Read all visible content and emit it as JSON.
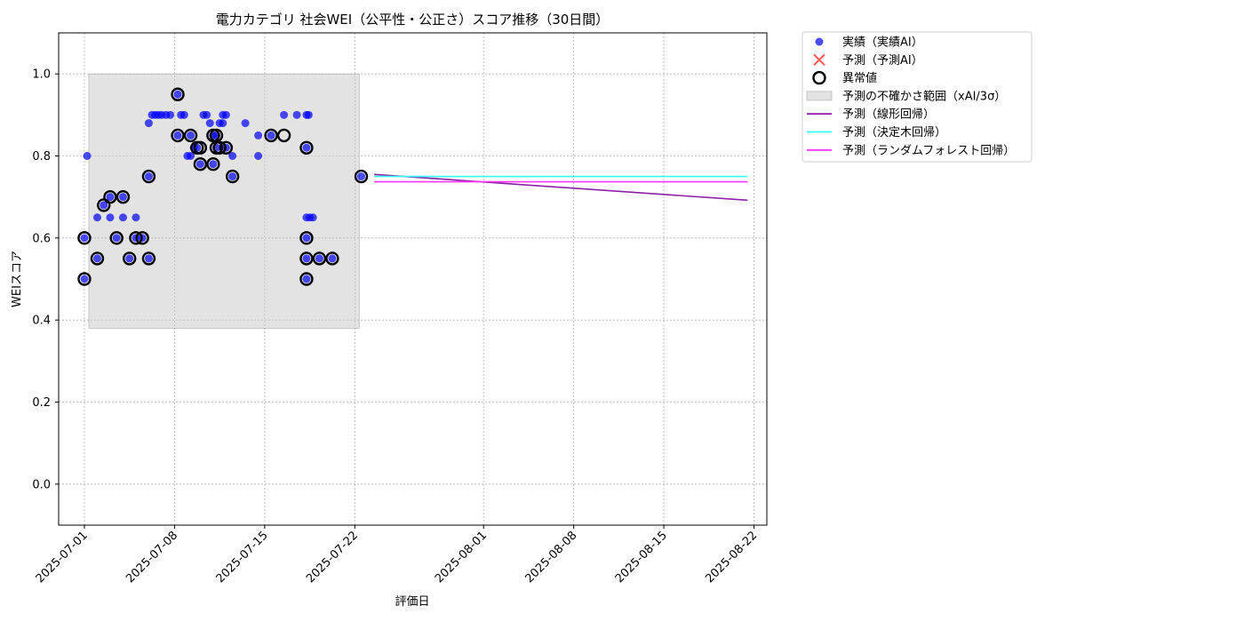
{
  "chart_data": {
    "type": "scatter",
    "title": "電力カテゴリ 社会WEI（公平性・公正さ）スコア推移（30日間）",
    "xlabel": "評価日",
    "ylabel": "WEIスコア",
    "xlim": [
      "2025-06-29",
      "2025-08-23"
    ],
    "ylim": [
      -0.1,
      1.1
    ],
    "grid": true,
    "legend_position": "outside-top-right",
    "x_ticks": [
      "2025-07-01",
      "2025-07-08",
      "2025-07-15",
      "2025-07-22",
      "2025-08-01",
      "2025-08-08",
      "2025-08-15",
      "2025-08-22"
    ],
    "y_ticks": [
      "0.0",
      "0.2",
      "0.4",
      "0.6",
      "0.8",
      "1.0"
    ],
    "colors": {
      "actual": "#0000ff",
      "predicted": "#ff2b2b",
      "anomaly": "#000000",
      "uncertainty": "#c8c8c8",
      "linear": "#8b1fa8",
      "tree": "#33ffff",
      "forest": "#ff33ff"
    },
    "legend": [
      {
        "key": "actual",
        "label": "実績（実績AI）",
        "marker": "dot"
      },
      {
        "key": "predicted",
        "label": "予測（予測AI）",
        "marker": "x"
      },
      {
        "key": "anomaly",
        "label": "異常値",
        "marker": "ring"
      },
      {
        "key": "uncertainty",
        "label": "予測の不確かさ範囲（xAI/3σ）",
        "marker": "band"
      },
      {
        "key": "linear",
        "label": "予測（線形回帰）",
        "marker": "line"
      },
      {
        "key": "tree",
        "label": "予測（決定木回帰）",
        "marker": "line"
      },
      {
        "key": "forest",
        "label": "予測（ランダムフォレスト回帰）",
        "marker": "line"
      }
    ],
    "uncertainty_band": {
      "x_start": "2025-07-01",
      "x_end": "2025-07-22",
      "y_low": 0.38,
      "y_high": 1.0
    },
    "series": [
      {
        "key": "actual",
        "name": "実績（実績AI）",
        "points": [
          [
            "2025-07-01T00:00",
            0.5
          ],
          [
            "2025-07-01T00:00",
            0.6
          ],
          [
            "2025-07-01T05:00",
            0.8
          ],
          [
            "2025-07-02T00:00",
            0.55
          ],
          [
            "2025-07-02T00:00",
            0.65
          ],
          [
            "2025-07-02T12:00",
            0.68
          ],
          [
            "2025-07-03T00:00",
            0.7
          ],
          [
            "2025-07-03T00:00",
            0.65
          ],
          [
            "2025-07-03T12:00",
            0.6
          ],
          [
            "2025-07-04T00:00",
            0.7
          ],
          [
            "2025-07-04T00:00",
            0.65
          ],
          [
            "2025-07-04T12:00",
            0.55
          ],
          [
            "2025-07-05T00:00",
            0.6
          ],
          [
            "2025-07-05T00:00",
            0.65
          ],
          [
            "2025-07-05T12:00",
            0.6
          ],
          [
            "2025-07-06T00:00",
            0.55
          ],
          [
            "2025-07-06T00:00",
            0.75
          ],
          [
            "2025-07-06T00:00",
            0.88
          ],
          [
            "2025-07-06T06:00",
            0.9
          ],
          [
            "2025-07-06T12:00",
            0.9
          ],
          [
            "2025-07-06T18:00",
            0.9
          ],
          [
            "2025-07-07T00:00",
            0.9
          ],
          [
            "2025-07-07T08:00",
            0.9
          ],
          [
            "2025-07-07T16:00",
            0.9
          ],
          [
            "2025-07-08T06:00",
            0.95
          ],
          [
            "2025-07-08T06:00",
            0.85
          ],
          [
            "2025-07-08T12:00",
            0.9
          ],
          [
            "2025-07-08T18:00",
            0.9
          ],
          [
            "2025-07-09T00:00",
            0.8
          ],
          [
            "2025-07-09T06:00",
            0.85
          ],
          [
            "2025-07-09T06:00",
            0.8
          ],
          [
            "2025-07-09T12:00",
            0.82
          ],
          [
            "2025-07-09T18:00",
            0.82
          ],
          [
            "2025-07-10T00:00",
            0.78
          ],
          [
            "2025-07-10T06:00",
            0.9
          ],
          [
            "2025-07-10T12:00",
            0.9
          ],
          [
            "2025-07-10T18:00",
            0.88
          ],
          [
            "2025-07-11T00:00",
            0.85
          ],
          [
            "2025-07-11T00:00",
            0.78
          ],
          [
            "2025-07-11T06:00",
            0.85
          ],
          [
            "2025-07-11T06:00",
            0.82
          ],
          [
            "2025-07-11T12:00",
            0.88
          ],
          [
            "2025-07-11T18:00",
            0.88
          ],
          [
            "2025-07-11T18:00",
            0.9
          ],
          [
            "2025-07-12T00:00",
            0.82
          ],
          [
            "2025-07-12T00:00",
            0.9
          ],
          [
            "2025-07-12T12:00",
            0.8
          ],
          [
            "2025-07-12T12:00",
            0.75
          ],
          [
            "2025-07-13T12:00",
            0.88
          ],
          [
            "2025-07-14T12:00",
            0.85
          ],
          [
            "2025-07-14T12:00",
            0.8
          ],
          [
            "2025-07-15T12:00",
            0.85
          ],
          [
            "2025-07-16T12:00",
            0.9
          ],
          [
            "2025-07-17T12:00",
            0.9
          ],
          [
            "2025-07-18T06:00",
            0.9
          ],
          [
            "2025-07-18T10:00",
            0.9
          ],
          [
            "2025-07-18T06:00",
            0.82
          ],
          [
            "2025-07-18T06:00",
            0.65
          ],
          [
            "2025-07-18T12:00",
            0.65
          ],
          [
            "2025-07-18T18:00",
            0.65
          ],
          [
            "2025-07-18T06:00",
            0.6
          ],
          [
            "2025-07-18T06:00",
            0.55
          ],
          [
            "2025-07-18T06:00",
            0.5
          ],
          [
            "2025-07-19T06:00",
            0.55
          ],
          [
            "2025-07-20T06:00",
            0.55
          ],
          [
            "2025-07-22T12:00",
            0.75
          ]
        ]
      },
      {
        "key": "anomaly",
        "name": "異常値",
        "points": [
          [
            "2025-07-01T00:00",
            0.5
          ],
          [
            "2025-07-01T00:00",
            0.6
          ],
          [
            "2025-07-02T00:00",
            0.55
          ],
          [
            "2025-07-02T12:00",
            0.68
          ],
          [
            "2025-07-03T00:00",
            0.7
          ],
          [
            "2025-07-03T12:00",
            0.6
          ],
          [
            "2025-07-04T00:00",
            0.7
          ],
          [
            "2025-07-04T12:00",
            0.55
          ],
          [
            "2025-07-05T00:00",
            0.6
          ],
          [
            "2025-07-05T12:00",
            0.6
          ],
          [
            "2025-07-06T00:00",
            0.55
          ],
          [
            "2025-07-06T00:00",
            0.75
          ],
          [
            "2025-07-08T06:00",
            0.95
          ],
          [
            "2025-07-08T06:00",
            0.85
          ],
          [
            "2025-07-09T06:00",
            0.85
          ],
          [
            "2025-07-09T18:00",
            0.82
          ],
          [
            "2025-07-10T00:00",
            0.82
          ],
          [
            "2025-07-10T00:00",
            0.78
          ],
          [
            "2025-07-11T00:00",
            0.85
          ],
          [
            "2025-07-11T00:00",
            0.78
          ],
          [
            "2025-07-11T06:00",
            0.85
          ],
          [
            "2025-07-11T06:00",
            0.82
          ],
          [
            "2025-07-11T12:00",
            0.82
          ],
          [
            "2025-07-12T00:00",
            0.82
          ],
          [
            "2025-07-12T12:00",
            0.75
          ],
          [
            "2025-07-15T12:00",
            0.85
          ],
          [
            "2025-07-16T12:00",
            0.85
          ],
          [
            "2025-07-18T06:00",
            0.82
          ],
          [
            "2025-07-18T06:00",
            0.6
          ],
          [
            "2025-07-18T06:00",
            0.55
          ],
          [
            "2025-07-18T06:00",
            0.5
          ],
          [
            "2025-07-19T06:00",
            0.55
          ],
          [
            "2025-07-20T06:00",
            0.55
          ],
          [
            "2025-07-22T12:00",
            0.75
          ]
        ]
      },
      {
        "key": "linear",
        "name": "予測（線形回帰）",
        "points": [
          [
            "2025-07-23T12:00",
            0.755
          ],
          [
            "2025-08-21T12:00",
            0.692
          ]
        ]
      },
      {
        "key": "tree",
        "name": "予測（決定木回帰）",
        "points": [
          [
            "2025-07-23T12:00",
            0.75
          ],
          [
            "2025-08-21T12:00",
            0.75
          ]
        ]
      },
      {
        "key": "forest",
        "name": "予測（ランダムフォレスト回帰）",
        "points": [
          [
            "2025-07-23T12:00",
            0.737
          ],
          [
            "2025-08-21T12:00",
            0.737
          ]
        ]
      }
    ]
  }
}
